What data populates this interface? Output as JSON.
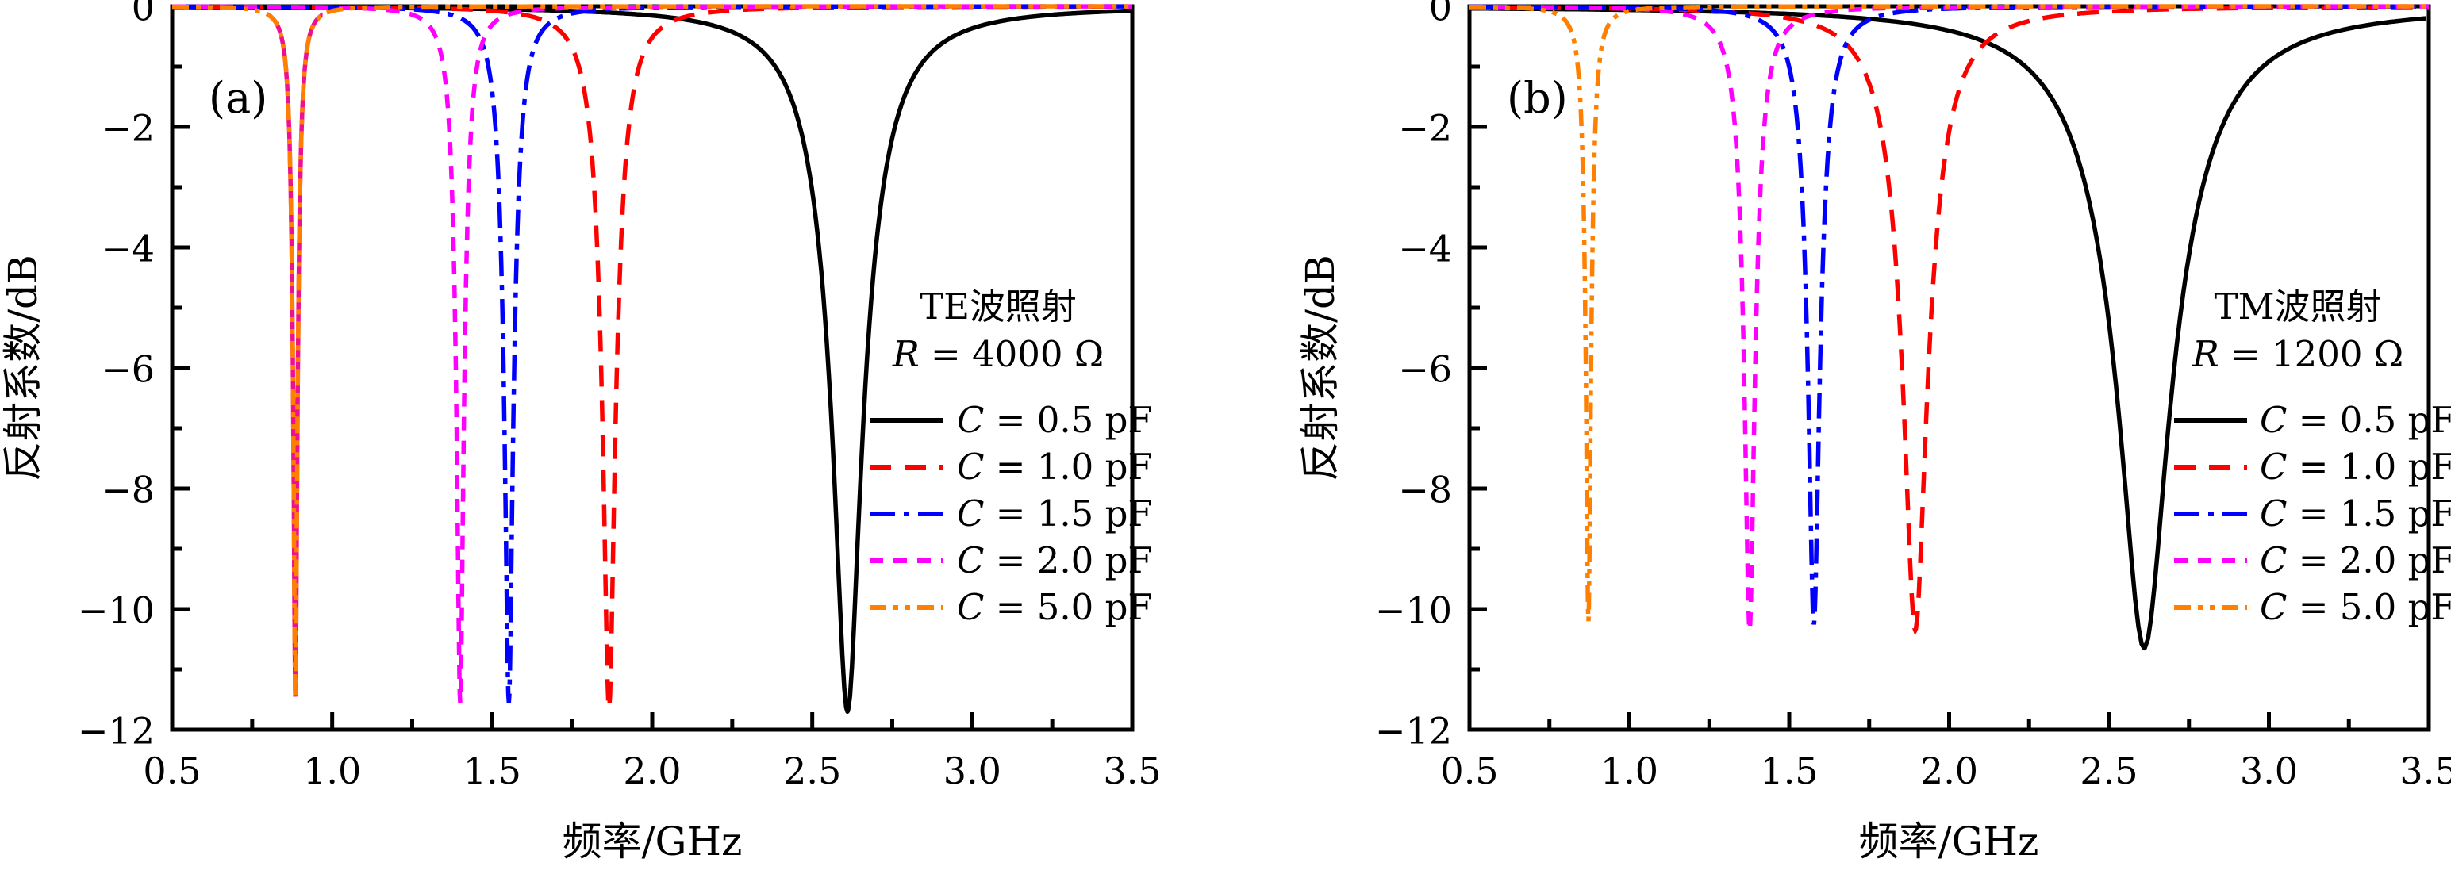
{
  "figure": {
    "background": "#FFFFFF",
    "description_visible_text_only": true
  },
  "chart_data": [
    {
      "type": "line",
      "panel_label": "(a)",
      "annotations": [
        "TE波照射",
        "R = 4000 Ω"
      ],
      "xlabel": "频率/GHz",
      "ylabel": "反射系数/dB",
      "xlim": [
        0.5,
        3.5
      ],
      "ylim": [
        -12,
        0
      ],
      "xtick_values": [
        0.5,
        1.0,
        1.5,
        2.0,
        2.5,
        3.0,
        3.5
      ],
      "xtick_labels": [
        "0.5",
        "1.0",
        "1.5",
        "2.0",
        "2.5",
        "3.0",
        "3.5"
      ],
      "ytick_values": [
        0,
        -2,
        -4,
        -6,
        -8,
        -10,
        -12
      ],
      "ytick_labels": [
        "0",
        "−2",
        "−4",
        "−6",
        "−8",
        "−10",
        "−12"
      ],
      "minor_xtick_interval": 0.25,
      "minor_ytick_interval": 1,
      "grid": false,
      "legend_position": "right-center",
      "curve_model": "dB(f) = 10*log10(1 - (1 - 10^(min_dB/10)) * w^2 / ((f - f0)^2 + w^2))",
      "series": [
        {
          "label": "C = 0.5 pF",
          "color": "#000000",
          "line_style": "solid",
          "resonance_GHz": 2.61,
          "min_dB": -11.7,
          "halfwidth_GHz": 0.12
        },
        {
          "label": "C = 1.0 pF",
          "color": "#FF0000",
          "line_style": "dash",
          "resonance_GHz": 1.865,
          "min_dB": -11.65,
          "halfwidth_GHz": 0.05
        },
        {
          "label": "C = 1.5 pF",
          "color": "#0000FF",
          "line_style": "dash-dot",
          "resonance_GHz": 1.552,
          "min_dB": -11.55,
          "halfwidth_GHz": 0.034
        },
        {
          "label": "C = 2.0 pF",
          "color": "#FF00FF",
          "line_style": "short-dash",
          "resonance_GHz": 1.4,
          "min_dB": -11.55,
          "halfwidth_GHz": 0.028
        },
        {
          "label": "C = 5.0 pF",
          "color": "#FF8000",
          "line_style": "dash-dot-dot",
          "resonance_GHz": 0.885,
          "min_dB": -11.45,
          "halfwidth_GHz": 0.016,
          "underlay": {
            "color": "#EE1090",
            "from_GHz": 0.8,
            "to_GHz": 0.97
          }
        }
      ]
    },
    {
      "type": "line",
      "panel_label": "(b)",
      "annotations": [
        "TM波照射",
        "R = 1200 Ω"
      ],
      "xlabel": "频率/GHz",
      "ylabel": "反射系数/dB",
      "xlim": [
        0.5,
        3.5
      ],
      "ylim": [
        -12,
        0
      ],
      "xtick_values": [
        0.5,
        1.0,
        1.5,
        2.0,
        2.5,
        3.0,
        3.5
      ],
      "xtick_labels": [
        "0.5",
        "1.0",
        "1.5",
        "2.0",
        "2.5",
        "3.0",
        "3.5"
      ],
      "ytick_values": [
        0,
        -2,
        -4,
        -6,
        -8,
        -10,
        -12
      ],
      "ytick_labels": [
        "0",
        "−2",
        "−4",
        "−6",
        "−8",
        "−10",
        "−12"
      ],
      "minor_xtick_interval": 0.25,
      "minor_ytick_interval": 1,
      "grid": false,
      "legend_position": "right-center",
      "curve_model": "dB(f) = 10*log10(1 - (1 - 10^(min_dB/10)) * w^2 / ((f - f0)^2 + w^2))",
      "series": [
        {
          "label": "C = 0.5 pF",
          "color": "#000000",
          "line_style": "solid",
          "resonance_GHz": 2.61,
          "min_dB": -10.65,
          "halfwidth_GHz": 0.2
        },
        {
          "label": "C = 1.0 pF",
          "color": "#FF0000",
          "line_style": "dash",
          "resonance_GHz": 1.894,
          "min_dB": -10.35,
          "halfwidth_GHz": 0.09
        },
        {
          "label": "C = 1.5 pF",
          "color": "#0000FF",
          "line_style": "dash-dot",
          "resonance_GHz": 1.577,
          "min_dB": -10.25,
          "halfwidth_GHz": 0.042
        },
        {
          "label": "C = 2.0 pF",
          "color": "#FF00FF",
          "line_style": "short-dash",
          "resonance_GHz": 1.376,
          "min_dB": -10.35,
          "halfwidth_GHz": 0.038
        },
        {
          "label": "C = 5.0 pF",
          "color": "#FF8000",
          "line_style": "dash-dot-dot",
          "resonance_GHz": 0.872,
          "min_dB": -10.2,
          "halfwidth_GHz": 0.018
        }
      ]
    }
  ]
}
